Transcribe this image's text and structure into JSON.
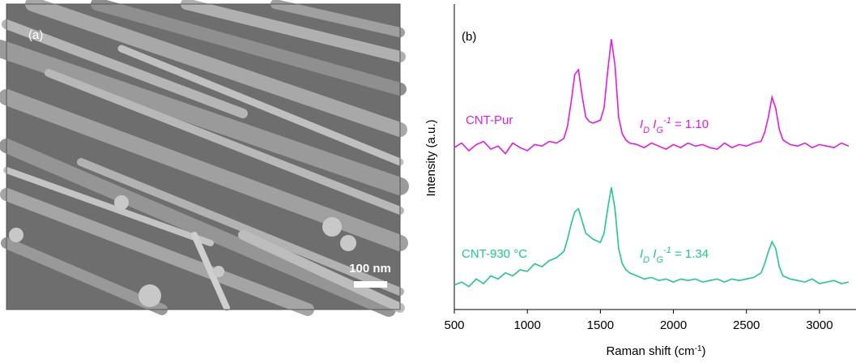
{
  "image_panel": {
    "label": "(a)",
    "scale_bar": "100 nm"
  },
  "chart_data": {
    "type": "line",
    "panel_label": "(b)",
    "ylabel": "Intensity (a.u.)",
    "xlabel": [
      "Raman shift (cm",
      "-1",
      ")"
    ],
    "xlim": [
      500,
      3250
    ],
    "xticks": [
      500,
      1000,
      1500,
      2000,
      2500,
      3000
    ],
    "ylim": [
      0,
      1
    ],
    "x": [
      500,
      550,
      600,
      650,
      700,
      750,
      800,
      850,
      900,
      950,
      1000,
      1050,
      1100,
      1150,
      1200,
      1250,
      1275,
      1300,
      1325,
      1350,
      1375,
      1400,
      1425,
      1450,
      1475,
      1500,
      1525,
      1550,
      1575,
      1600,
      1625,
      1650,
      1675,
      1700,
      1750,
      1800,
      1850,
      1900,
      1950,
      2000,
      2050,
      2100,
      2150,
      2200,
      2250,
      2300,
      2350,
      2400,
      2450,
      2500,
      2550,
      2600,
      2625,
      2650,
      2675,
      2700,
      2725,
      2750,
      2800,
      2850,
      2900,
      2950,
      3000,
      3050,
      3100,
      3150,
      3200
    ],
    "series": [
      {
        "name": "CNT-Pur",
        "color": "#e619e6",
        "values": [
          0.53,
          0.545,
          0.52,
          0.54,
          0.55,
          0.525,
          0.535,
          0.51,
          0.545,
          0.53,
          0.52,
          0.54,
          0.535,
          0.55,
          0.545,
          0.56,
          0.6,
          0.68,
          0.77,
          0.785,
          0.7,
          0.63,
          0.615,
          0.61,
          0.615,
          0.62,
          0.66,
          0.78,
          0.885,
          0.8,
          0.63,
          0.575,
          0.555,
          0.545,
          0.54,
          0.53,
          0.545,
          0.535,
          0.525,
          0.54,
          0.53,
          0.545,
          0.535,
          0.54,
          0.53,
          0.525,
          0.545,
          0.53,
          0.54,
          0.535,
          0.545,
          0.55,
          0.58,
          0.63,
          0.695,
          0.66,
          0.59,
          0.555,
          0.54,
          0.535,
          0.545,
          0.53,
          0.54,
          0.535,
          0.53,
          0.545,
          0.535
        ],
        "annotation": [
          "I",
          "D",
          " I",
          "G",
          "-1",
          " = 1.10"
        ]
      },
      {
        "name": "CNT-930 °C",
        "color": "#1fc98a",
        "values": [
          0.08,
          0.09,
          0.075,
          0.1,
          0.085,
          0.11,
          0.1,
          0.12,
          0.11,
          0.13,
          0.125,
          0.15,
          0.14,
          0.16,
          0.17,
          0.19,
          0.23,
          0.28,
          0.32,
          0.33,
          0.29,
          0.25,
          0.24,
          0.23,
          0.225,
          0.22,
          0.25,
          0.33,
          0.4,
          0.33,
          0.2,
          0.15,
          0.13,
          0.12,
          0.11,
          0.1,
          0.105,
          0.095,
          0.1,
          0.09,
          0.1,
          0.095,
          0.1,
          0.09,
          0.095,
          0.1,
          0.09,
          0.1,
          0.095,
          0.1,
          0.105,
          0.12,
          0.15,
          0.19,
          0.222,
          0.2,
          0.14,
          0.11,
          0.1,
          0.095,
          0.09,
          0.1,
          0.085,
          0.09,
          0.095,
          0.085,
          0.09
        ],
        "annotation": [
          "I",
          "D",
          " I",
          "G",
          "-1",
          " = 1.34"
        ]
      }
    ]
  }
}
